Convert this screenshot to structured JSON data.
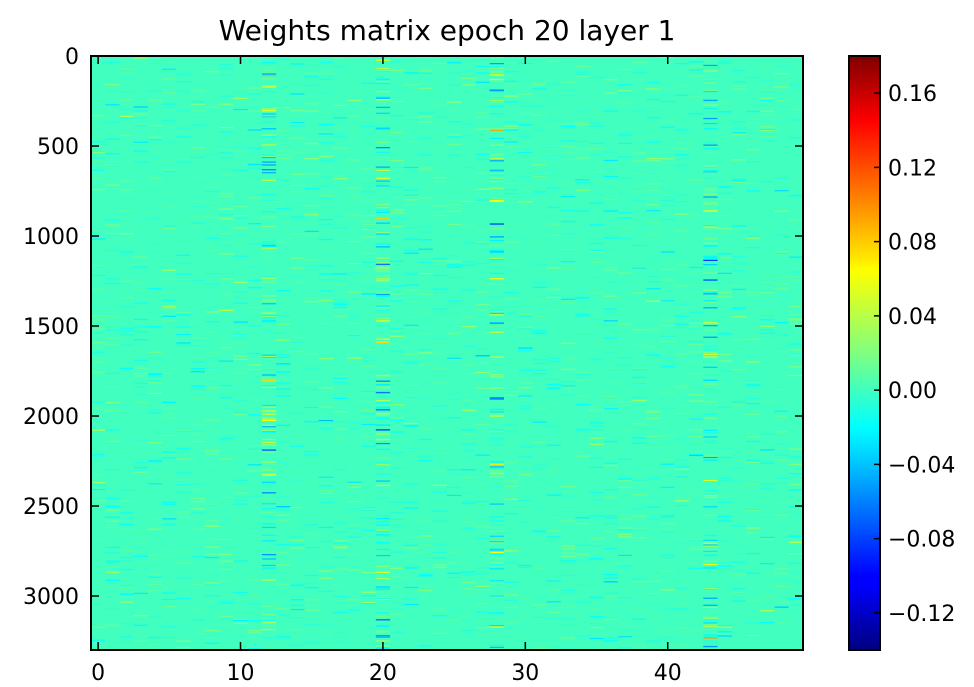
{
  "chart_data": {
    "type": "heatmap",
    "title": "Weights matrix epoch 20 layer 1",
    "xlabel": "",
    "ylabel": "",
    "xlim": [
      -0.5,
      49.5
    ],
    "ylim": [
      3300,
      0
    ],
    "x_ticks": [
      0,
      10,
      20,
      30,
      40
    ],
    "x_tick_labels": [
      "0",
      "10",
      "20",
      "30",
      "40"
    ],
    "y_ticks": [
      0,
      500,
      1000,
      1500,
      2000,
      2500,
      3000
    ],
    "y_tick_labels": [
      "0",
      "500",
      "1000",
      "1500",
      "2000",
      "2500",
      "3000"
    ],
    "shape": [
      3300,
      50
    ],
    "colormap": "jet",
    "vmin": -0.14,
    "vmax": 0.18,
    "background_value": 0.0,
    "colorbar_ticks": [
      0.16,
      0.12,
      0.08,
      0.04,
      0.0,
      -0.04,
      -0.08,
      -0.12
    ],
    "colorbar_tick_labels": [
      "0.16",
      "0.12",
      "0.08",
      "0.04",
      "0.00",
      "−0.04",
      "−0.08",
      "−0.12"
    ],
    "grid": false,
    "high_variance_columns": [
      12,
      20,
      28,
      43
    ]
  }
}
